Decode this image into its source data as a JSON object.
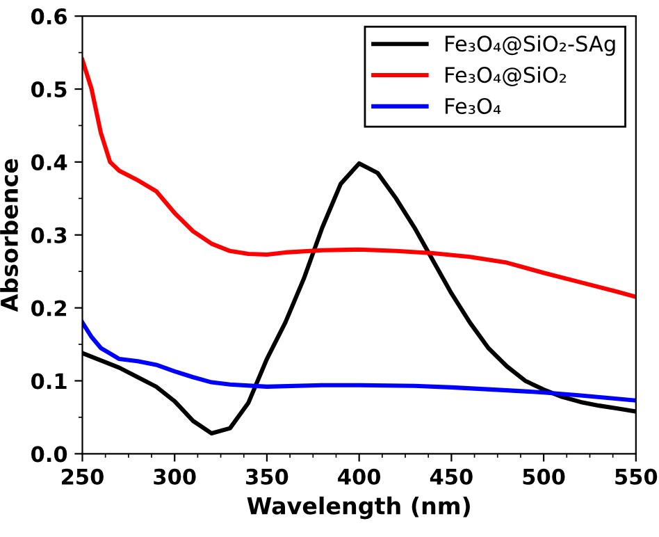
{
  "chart_data": {
    "type": "line",
    "xlabel": "Wavelength (nm)",
    "ylabel": "Absorbence",
    "xlim": [
      250,
      550
    ],
    "xticks": [
      250,
      300,
      350,
      400,
      450,
      500,
      550
    ],
    "ylim": [
      0,
      0.6
    ],
    "yticks": [
      {
        "value": 0,
        "label": "0.0"
      },
      0.1,
      0.2,
      0.3,
      0.4,
      0.5,
      0.6
    ],
    "grid": false,
    "legend": "top right",
    "marker": "none",
    "line_style": "solid",
    "series": [
      {
        "name": "Fe₃O₄@SiO₂-SAg",
        "color": "#000000",
        "x": [
          250,
          260,
          270,
          280,
          290,
          300,
          310,
          320,
          330,
          340,
          350,
          360,
          370,
          380,
          390,
          400,
          410,
          420,
          430,
          440,
          450,
          460,
          470,
          480,
          490,
          500,
          510,
          520,
          530,
          540,
          550
        ],
        "values": [
          0.138,
          0.128,
          0.118,
          0.105,
          0.092,
          0.072,
          0.045,
          0.028,
          0.035,
          0.07,
          0.13,
          0.18,
          0.24,
          0.31,
          0.37,
          0.398,
          0.385,
          0.35,
          0.31,
          0.265,
          0.22,
          0.18,
          0.145,
          0.12,
          0.1,
          0.088,
          0.078,
          0.071,
          0.066,
          0.062,
          0.058
        ]
      },
      {
        "name": "Fe₃O₄@SiO₂",
        "color": "#ff0000",
        "x": [
          250,
          255,
          260,
          265,
          270,
          280,
          290,
          300,
          310,
          320,
          330,
          340,
          350,
          360,
          380,
          400,
          420,
          440,
          460,
          480,
          500,
          520,
          540,
          550
        ],
        "values": [
          0.54,
          0.5,
          0.44,
          0.4,
          0.388,
          0.375,
          0.36,
          0.33,
          0.305,
          0.288,
          0.278,
          0.274,
          0.273,
          0.276,
          0.279,
          0.28,
          0.278,
          0.275,
          0.27,
          0.262,
          0.248,
          0.235,
          0.222,
          0.215
        ]
      },
      {
        "name": "Fe₃O₄",
        "color": "#0000ff",
        "x": [
          250,
          255,
          260,
          270,
          280,
          290,
          300,
          310,
          320,
          330,
          350,
          380,
          400,
          430,
          450,
          480,
          500,
          520,
          550
        ],
        "values": [
          0.18,
          0.16,
          0.145,
          0.13,
          0.127,
          0.122,
          0.113,
          0.105,
          0.098,
          0.095,
          0.092,
          0.094,
          0.094,
          0.093,
          0.091,
          0.087,
          0.084,
          0.08,
          0.073
        ]
      }
    ]
  }
}
